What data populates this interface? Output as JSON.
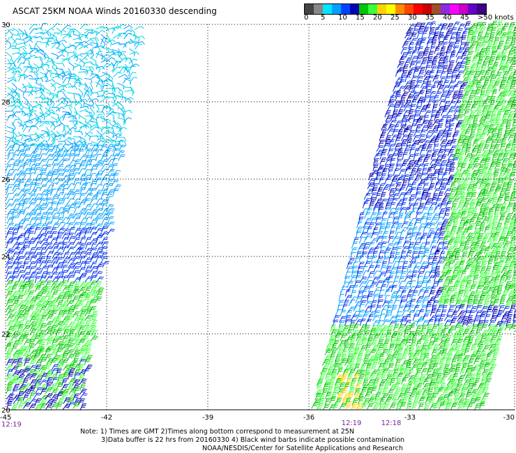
{
  "title": "ASCAT 25KM NOAA Winds 20160330 descending",
  "colorbar": {
    "labels": [
      "0",
      "5",
      "10",
      "15",
      "20",
      "25",
      "30",
      "35",
      "40",
      "45",
      ">50 knots"
    ],
    "colors": [
      "#444444",
      "#888888",
      "#00e5ff",
      "#00a0ff",
      "#0044ff",
      "#0000b4",
      "#00c800",
      "#3cff3c",
      "#ffd200",
      "#ffff00",
      "#ff8c00",
      "#ff4500",
      "#ff0000",
      "#c80000",
      "#a05028",
      "#8a2be2",
      "#ff00ff",
      "#c800c8",
      "#6400c8",
      "#3c0082"
    ]
  },
  "axes": {
    "y_labels": [
      "30",
      "28",
      "26",
      "24",
      "22",
      "20"
    ],
    "x_labels": [
      "-45",
      "-42",
      "-39",
      "-36",
      "-33",
      "-30"
    ]
  },
  "times": [
    "12:19",
    "12:19",
    "12:18"
  ],
  "notes": {
    "line1": "Note: 1) Times are GMT 2)Times along bottom correspond to measurement at 25N",
    "line2": "3)Data buffer is 22 hrs from 20160330 4) Black wind barbs indicate possible contamination",
    "line3": "NOAA/NESDIS/Center for Satellite Applications and Research"
  }
}
